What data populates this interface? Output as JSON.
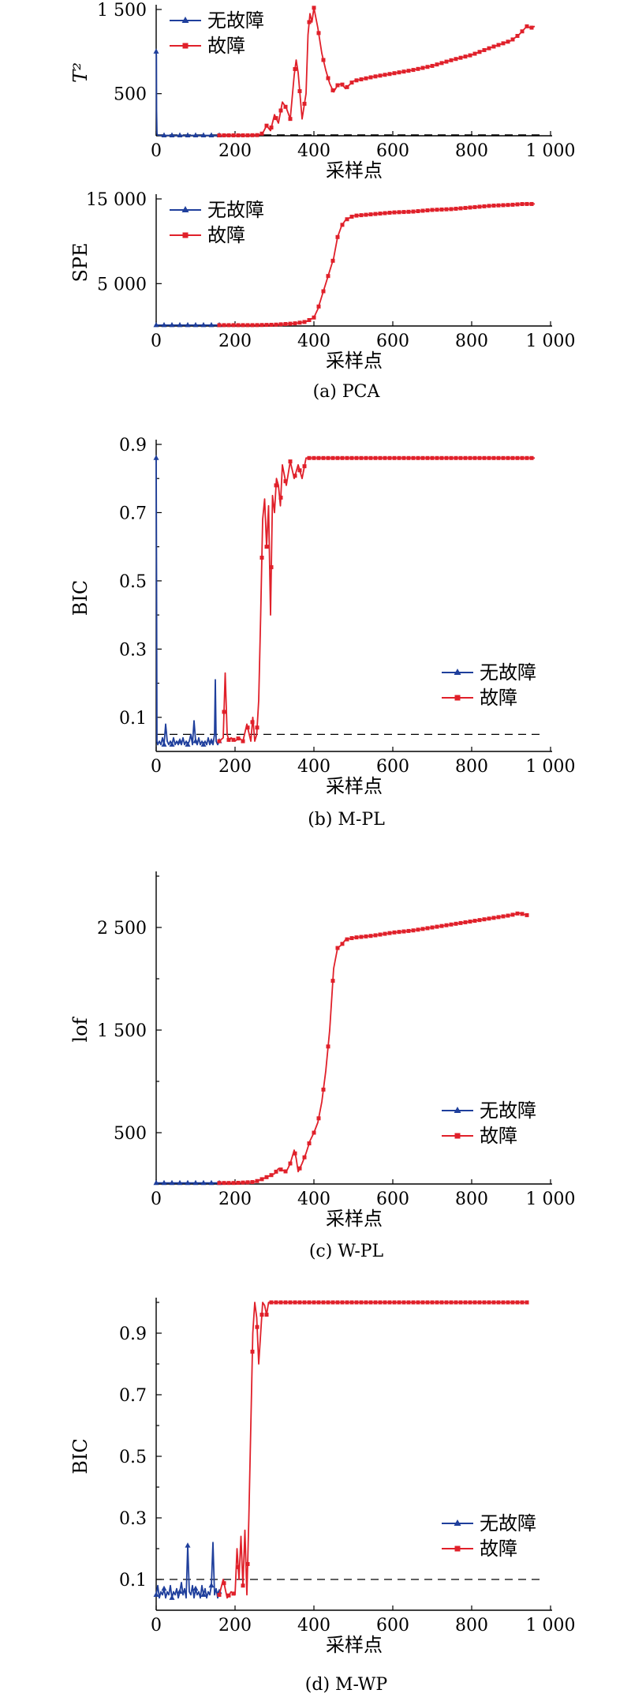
{
  "colors": {
    "normal": "#1f3f9c",
    "fault": "#e0202a",
    "axis": "#000000",
    "threshold": "#000000"
  },
  "chart_data": [
    {
      "type": "line",
      "ylabel": "T²",
      "xlabel": "采样点",
      "caption": "",
      "xlim": [
        0,
        1000
      ],
      "ylim": [
        0,
        1500
      ],
      "xticks": [
        0,
        200,
        400,
        600,
        800,
        1000
      ],
      "xtick_labels": [
        "0",
        "200",
        "400",
        "600",
        "800",
        "1 000"
      ],
      "yticks": [
        500,
        1500
      ],
      "ytick_labels": [
        "500",
        "1 500"
      ],
      "minor_yticks": [],
      "threshold": 10,
      "legend": [
        "无故障",
        "故障"
      ],
      "legend_position": "top-left",
      "series": [
        {
          "name": "无故障",
          "x": [
            0,
            0.5,
            1,
            2,
            3,
            6,
            10,
            20,
            40,
            60,
            80,
            100,
            120,
            140,
            160
          ],
          "y": [
            1000,
            950,
            300,
            30,
            10,
            6,
            5,
            5,
            5,
            5,
            5,
            5,
            5,
            5,
            5
          ]
        },
        {
          "name": "故障",
          "x": [
            160,
            200,
            230,
            260,
            270,
            280,
            290,
            300,
            310,
            320,
            330,
            340,
            350,
            355,
            360,
            370,
            380,
            385,
            390,
            395,
            400,
            410,
            420,
            430,
            440,
            450,
            460,
            470,
            480,
            500,
            550,
            600,
            650,
            700,
            750,
            800,
            850,
            900,
            920,
            940,
            950,
            960
          ],
          "y": [
            5,
            5,
            5,
            8,
            30,
            120,
            60,
            250,
            150,
            400,
            330,
            200,
            720,
            900,
            750,
            200,
            500,
            1200,
            1450,
            1350,
            1520,
            1280,
            980,
            780,
            620,
            520,
            600,
            620,
            560,
            650,
            700,
            740,
            780,
            830,
            900,
            960,
            1050,
            1130,
            1200,
            1300,
            1280,
            1300
          ]
        }
      ]
    },
    {
      "type": "line",
      "ylabel": "SPE",
      "xlabel": "采样点",
      "caption": "(a) PCA",
      "xlim": [
        0,
        1000
      ],
      "ylim": [
        0,
        15000
      ],
      "xticks": [
        0,
        200,
        400,
        600,
        800,
        1000
      ],
      "xtick_labels": [
        "0",
        "200",
        "400",
        "600",
        "800",
        "1 000"
      ],
      "yticks": [
        5000,
        15000
      ],
      "ytick_labels": [
        "5 000",
        "15 000"
      ],
      "minor_yticks": [],
      "threshold": null,
      "legend": [
        "无故障",
        "故障"
      ],
      "legend_position": "top-left",
      "series": [
        {
          "name": "无故障",
          "x": [
            0,
            20,
            40,
            60,
            80,
            100,
            120,
            140,
            160
          ],
          "y": [
            100,
            100,
            100,
            100,
            100,
            100,
            100,
            100,
            100
          ]
        },
        {
          "name": "故障",
          "x": [
            160,
            200,
            250,
            300,
            350,
            380,
            400,
            410,
            420,
            430,
            440,
            450,
            460,
            470,
            480,
            500,
            550,
            600,
            650,
            700,
            750,
            800,
            850,
            900,
            930,
            960
          ],
          "y": [
            100,
            100,
            100,
            150,
            300,
            500,
            1000,
            2000,
            3500,
            5000,
            6500,
            8000,
            10500,
            11800,
            12500,
            13000,
            13200,
            13400,
            13500,
            13700,
            13800,
            14000,
            14200,
            14300,
            14400,
            14400
          ]
        }
      ]
    },
    {
      "type": "line",
      "ylabel": "BIC",
      "xlabel": "采样点",
      "caption": "(b) M-PL",
      "xlim": [
        0,
        1000
      ],
      "ylim": [
        0,
        0.9
      ],
      "xticks": [
        0,
        200,
        400,
        600,
        800,
        1000
      ],
      "xtick_labels": [
        "0",
        "200",
        "400",
        "600",
        "800",
        "1 000"
      ],
      "yticks": [
        0.1,
        0.3,
        0.5,
        0.7,
        0.9
      ],
      "ytick_labels": [
        "0.1",
        "0.3",
        "0.5",
        "0.7",
        "0.9"
      ],
      "minor_yticks": [
        0.2,
        0.4,
        0.6,
        0.8
      ],
      "threshold": 0.05,
      "legend": [
        "无故障",
        "故障"
      ],
      "legend_position": "right",
      "series": [
        {
          "name": "无故障",
          "x": [
            0,
            1,
            2,
            4,
            8,
            12,
            16,
            20,
            24,
            28,
            32,
            36,
            40,
            44,
            48,
            52,
            56,
            60,
            64,
            68,
            72,
            76,
            80,
            84,
            88,
            92,
            96,
            100,
            104,
            108,
            112,
            116,
            120,
            124,
            128,
            132,
            136,
            140,
            144,
            148,
            150,
            152,
            156,
            160
          ],
          "y": [
            0.86,
            0.5,
            0.03,
            0.02,
            0.03,
            0.02,
            0.04,
            0.02,
            0.08,
            0.03,
            0.02,
            0.03,
            0.02,
            0.04,
            0.02,
            0.03,
            0.02,
            0.03,
            0.02,
            0.04,
            0.02,
            0.03,
            0.02,
            0.03,
            0.05,
            0.02,
            0.09,
            0.03,
            0.02,
            0.04,
            0.02,
            0.03,
            0.02,
            0.03,
            0.02,
            0.04,
            0.02,
            0.03,
            0.02,
            0.05,
            0.21,
            0.03,
            0.02,
            0.03
          ]
        },
        {
          "name": "故障",
          "x": [
            160,
            170,
            175,
            180,
            185,
            190,
            200,
            210,
            220,
            230,
            240,
            245,
            250,
            255,
            260,
            265,
            270,
            275,
            280,
            285,
            290,
            295,
            300,
            305,
            310,
            315,
            320,
            330,
            340,
            350,
            360,
            370,
            380,
            390,
            400,
            450,
            500,
            550,
            600,
            650,
            700,
            750,
            800,
            850,
            900,
            950,
            960
          ],
          "y": [
            0.03,
            0.04,
            0.23,
            0.05,
            0.03,
            0.04,
            0.03,
            0.04,
            0.03,
            0.08,
            0.03,
            0.1,
            0.03,
            0.05,
            0.15,
            0.4,
            0.68,
            0.74,
            0.6,
            0.72,
            0.4,
            0.75,
            0.7,
            0.8,
            0.78,
            0.72,
            0.84,
            0.78,
            0.85,
            0.8,
            0.84,
            0.8,
            0.86,
            0.86,
            0.86,
            0.86,
            0.86,
            0.86,
            0.86,
            0.86,
            0.86,
            0.86,
            0.86,
            0.86,
            0.86,
            0.86,
            0.86
          ]
        }
      ]
    },
    {
      "type": "line",
      "ylabel": "lof",
      "xlabel": "采样点",
      "caption": "(c) W-PL",
      "xlim": [
        0,
        1000
      ],
      "ylim": [
        0,
        3000
      ],
      "xticks": [
        0,
        200,
        400,
        600,
        800,
        1000
      ],
      "xtick_labels": [
        "0",
        "200",
        "400",
        "600",
        "800",
        "1 000"
      ],
      "yticks": [
        500,
        1500,
        2500
      ],
      "ytick_labels": [
        "500",
        "1 500",
        "2 500"
      ],
      "minor_yticks": [
        1000,
        2000,
        3000
      ],
      "threshold": null,
      "legend": [
        "无故障",
        "故障"
      ],
      "legend_position": "right",
      "series": [
        {
          "name": "无故障",
          "x": [
            0,
            20,
            40,
            60,
            80,
            100,
            120,
            140,
            160
          ],
          "y": [
            10,
            10,
            10,
            10,
            10,
            10,
            10,
            10,
            10
          ]
        },
        {
          "name": "故障",
          "x": [
            160,
            200,
            250,
            270,
            300,
            310,
            330,
            340,
            350,
            355,
            360,
            370,
            380,
            390,
            400,
            410,
            420,
            430,
            440,
            450,
            460,
            470,
            480,
            500,
            550,
            600,
            650,
            700,
            750,
            800,
            850,
            900,
            920,
            940
          ],
          "y": [
            10,
            10,
            20,
            50,
            100,
            150,
            120,
            200,
            330,
            250,
            120,
            200,
            300,
            420,
            500,
            600,
            800,
            1100,
            1500,
            2100,
            2300,
            2330,
            2380,
            2400,
            2420,
            2450,
            2470,
            2500,
            2530,
            2560,
            2590,
            2620,
            2640,
            2620
          ]
        }
      ]
    },
    {
      "type": "line",
      "ylabel": "BIC",
      "xlabel": "采样点",
      "caption": "(d) M-WP",
      "xlim": [
        0,
        1000
      ],
      "ylim": [
        0,
        1.0
      ],
      "xticks": [
        0,
        200,
        400,
        600,
        800,
        1000
      ],
      "xtick_labels": [
        "0",
        "200",
        "400",
        "600",
        "800",
        "1 000"
      ],
      "yticks": [
        0.1,
        0.3,
        0.5,
        0.7,
        0.9
      ],
      "ytick_labels": [
        "0.1",
        "0.3",
        "0.5",
        "0.7",
        "0.9"
      ],
      "minor_yticks": [
        0.2,
        0.4,
        0.6,
        0.8,
        1.0
      ],
      "threshold": 0.1,
      "legend": [
        "无故障",
        "故障"
      ],
      "legend_position": "right",
      "series": [
        {
          "name": "无故障",
          "x": [
            0,
            4,
            8,
            12,
            16,
            20,
            24,
            28,
            32,
            36,
            40,
            44,
            48,
            52,
            56,
            60,
            64,
            68,
            72,
            76,
            80,
            84,
            88,
            92,
            96,
            100,
            104,
            108,
            112,
            116,
            120,
            124,
            128,
            132,
            136,
            140,
            144,
            148,
            152,
            156,
            160
          ],
          "y": [
            0.05,
            0.08,
            0.04,
            0.06,
            0.05,
            0.07,
            0.04,
            0.06,
            0.05,
            0.08,
            0.04,
            0.06,
            0.05,
            0.07,
            0.04,
            0.06,
            0.09,
            0.05,
            0.07,
            0.04,
            0.21,
            0.06,
            0.05,
            0.08,
            0.04,
            0.07,
            0.05,
            0.06,
            0.04,
            0.08,
            0.05,
            0.07,
            0.04,
            0.06,
            0.05,
            0.08,
            0.22,
            0.05,
            0.07,
            0.04,
            0.06
          ]
        },
        {
          "name": "故障",
          "x": [
            160,
            170,
            180,
            190,
            200,
            205,
            210,
            215,
            220,
            225,
            230,
            235,
            240,
            245,
            250,
            255,
            260,
            265,
            270,
            275,
            280,
            285,
            290,
            295,
            300,
            320,
            400,
            500,
            600,
            700,
            800,
            900,
            940
          ],
          "y": [
            0.05,
            0.1,
            0.04,
            0.06,
            0.05,
            0.2,
            0.1,
            0.24,
            0.08,
            0.26,
            0.05,
            0.3,
            0.6,
            0.9,
            1.0,
            0.95,
            0.8,
            0.9,
            1.0,
            0.99,
            0.96,
            1.0,
            1.0,
            1.0,
            1.0,
            1.0,
            1.0,
            1.0,
            1.0,
            1.0,
            1.0,
            1.0,
            1.0
          ]
        }
      ]
    }
  ]
}
